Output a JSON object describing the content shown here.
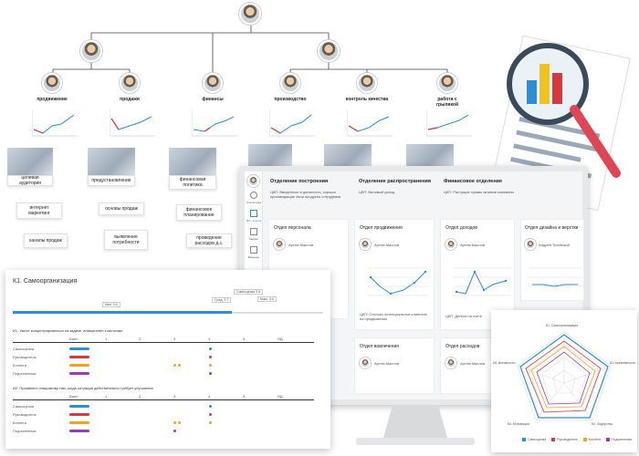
{
  "org": {
    "roles": [
      "продажи",
      "финансы",
      "производство",
      "контроль качества",
      "работа с\nгрылякой"
    ],
    "marketing": "продвижение",
    "tasks_left": [
      "целевая аудитория",
      "интернет маркетинг",
      "каналы продаж"
    ],
    "tasks_mid": [
      "предустановление",
      "основы продаж",
      "выявление потребности"
    ],
    "tasks_fin": [
      "финансовая политика",
      "финансовое планирование",
      "проведение расходов д.с."
    ]
  },
  "dashboard": {
    "columns": [
      {
        "title": "Отделение построения",
        "goal": "ЦКП: Введенные в должность, хорошо производящие свои продукты сотрудники"
      },
      {
        "title": "Отделение распространения",
        "goal": "ЦКП: Валовый доход"
      },
      {
        "title": "Финансовое отделение",
        "goal": "ЦКП: Растущие суммы активов компании"
      }
    ],
    "departments": [
      {
        "name": "Отдел персонала",
        "person": "Артем Маслов"
      },
      {
        "name": "Отдел продвижения",
        "person": "Артем Маслов"
      },
      {
        "name": "Отдел доходов",
        "person": "Артем Маслов"
      },
      {
        "name": "Отдел дизайна и верстки",
        "person": "Андрей Титовский"
      }
    ],
    "departments2": [
      {
        "name": "Отдел вовлечения",
        "person": "Артем Маслов"
      },
      {
        "name": "Отдел расходов",
        "person": "Артем Маслов"
      }
    ],
    "sub_goal": "ЦКП: Отклики потенциальных клиентов на продвижение",
    "sub_goal2": "ЦКП: Деньги на счете",
    "sidebar": [
      "Статистика",
      "Исп. отдела",
      "Задачи",
      "Финансы"
    ]
  },
  "assessment": {
    "title": "К1. Самоорганизация",
    "scale_labels": [
      "Мин. 0.6",
      "Сред. 3.7",
      "Самооценка 3.8",
      "Макс. 4.0"
    ],
    "cols": [
      "Балл",
      "1",
      "2",
      "3",
      "4",
      "5",
      "НД"
    ],
    "q1": "И1. Умеет концентрироваться на задаче, внимателен к мелочам",
    "q2": "И2. Проявляет инициативу там, когда ситуация действительно требует улучшения",
    "rows": [
      "Самооценка",
      "Руководитель",
      "Коллеги",
      "Подчиненные"
    ]
  },
  "radar": {
    "labels": [
      "К1. Самоорганизация",
      "К2. Креативность",
      "К3. Лидерство",
      "К4. Мотивация",
      "К5. Активность"
    ],
    "legend": [
      "Самооценка",
      "Руководитель",
      "Коллеги",
      "Подчиненные"
    ]
  },
  "colors": {
    "accent": "#2a8fd6",
    "red": "#d9363e",
    "orange": "#f2a324",
    "purple": "#9b3bb5",
    "yellow": "#f2c218"
  }
}
